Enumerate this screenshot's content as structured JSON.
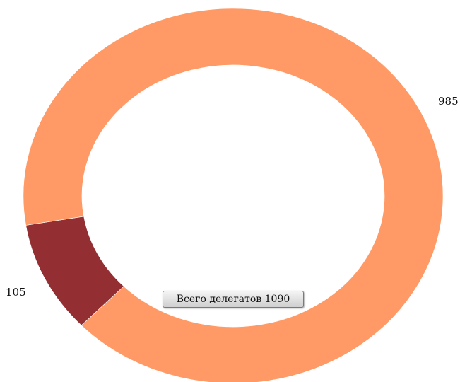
{
  "chart_data": {
    "type": "pie",
    "variant": "donut",
    "slices": [
      {
        "label": "105",
        "value": 105,
        "color": "#932F32"
      },
      {
        "label": "985",
        "value": 985,
        "color": "#FF9A66"
      }
    ],
    "total_label": "Всего делегатов 1090"
  }
}
